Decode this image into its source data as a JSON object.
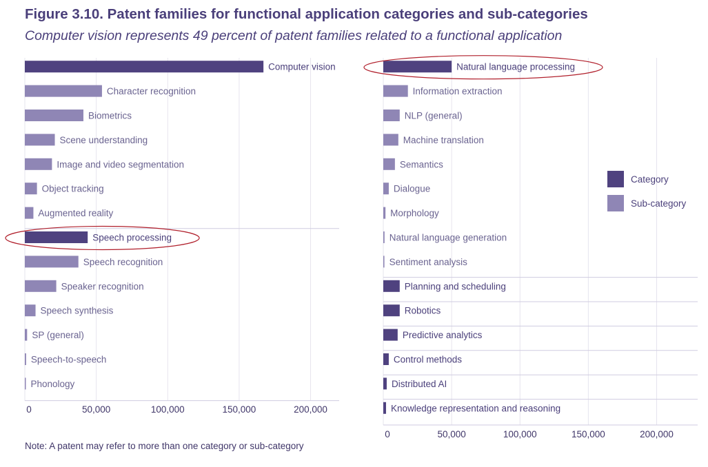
{
  "title": "Figure 3.10. Patent families for functional application categories and sub-categories",
  "subtitle": "Computer vision represents 49 percent of patent families related to a functional application",
  "note": "Note: A patent may refer to more than one category or sub-category",
  "colors": {
    "category": "#4f427f",
    "subcategory": "#8f86b5",
    "grid": "#e6e4ee",
    "axis": "#cfcbe0",
    "highlight": "#b01e2a"
  },
  "legend": [
    {
      "label": "Category",
      "kind": "category"
    },
    {
      "label": "Sub-category",
      "kind": "subcategory"
    }
  ],
  "chart_data": [
    {
      "type": "bar",
      "orientation": "horizontal",
      "xlim": [
        0,
        220000
      ],
      "xticks": [
        0,
        50000,
        100000,
        150000,
        200000
      ],
      "xtick_labels": [
        "0",
        "50,000",
        "100,000",
        "150,000",
        "200,000"
      ],
      "highlighted": [
        "Speech processing"
      ],
      "bars": [
        {
          "label": "Computer vision",
          "value": 167000,
          "kind": "category"
        },
        {
          "label": "Character recognition",
          "value": 54000,
          "kind": "subcategory"
        },
        {
          "label": "Biometrics",
          "value": 41000,
          "kind": "subcategory"
        },
        {
          "label": "Scene understanding",
          "value": 21000,
          "kind": "subcategory"
        },
        {
          "label": "Image and video segmentation",
          "value": 19000,
          "kind": "subcategory"
        },
        {
          "label": "Object tracking",
          "value": 8500,
          "kind": "subcategory"
        },
        {
          "label": "Augmented reality",
          "value": 6000,
          "kind": "subcategory"
        },
        {
          "label": "Speech processing",
          "value": 44000,
          "kind": "category"
        },
        {
          "label": "Speech recognition",
          "value": 37500,
          "kind": "subcategory"
        },
        {
          "label": "Speaker recognition",
          "value": 22000,
          "kind": "subcategory"
        },
        {
          "label": "Speech synthesis",
          "value": 7500,
          "kind": "subcategory"
        },
        {
          "label": "SP (general)",
          "value": 1600,
          "kind": "subcategory"
        },
        {
          "label": "Speech-to-speech",
          "value": 900,
          "kind": "subcategory"
        },
        {
          "label": "Phonology",
          "value": 700,
          "kind": "subcategory"
        }
      ]
    },
    {
      "type": "bar",
      "orientation": "horizontal",
      "xlim": [
        0,
        230000
      ],
      "xticks": [
        0,
        50000,
        100000,
        150000,
        200000
      ],
      "xtick_labels": [
        "0",
        "50,000",
        "100,000",
        "150,000",
        "200,000"
      ],
      "highlighted": [
        "Natural language processing"
      ],
      "bars": [
        {
          "label": "Natural language processing",
          "value": 50000,
          "kind": "category"
        },
        {
          "label": "Information extraction",
          "value": 18000,
          "kind": "subcategory"
        },
        {
          "label": "NLP (general)",
          "value": 12000,
          "kind": "subcategory"
        },
        {
          "label": "Machine translation",
          "value": 11000,
          "kind": "subcategory"
        },
        {
          "label": "Semantics",
          "value": 8500,
          "kind": "subcategory"
        },
        {
          "label": "Dialogue",
          "value": 4000,
          "kind": "subcategory"
        },
        {
          "label": "Morphology",
          "value": 1600,
          "kind": "subcategory"
        },
        {
          "label": "Natural language generation",
          "value": 900,
          "kind": "subcategory"
        },
        {
          "label": "Sentiment analysis",
          "value": 800,
          "kind": "subcategory"
        },
        {
          "label": "Planning and scheduling",
          "value": 12000,
          "kind": "category"
        },
        {
          "label": "Robotics",
          "value": 12000,
          "kind": "category"
        },
        {
          "label": "Predictive analytics",
          "value": 10500,
          "kind": "category"
        },
        {
          "label": "Control methods",
          "value": 4000,
          "kind": "category"
        },
        {
          "label": "Distributed AI",
          "value": 2500,
          "kind": "category"
        },
        {
          "label": "Knowledge representation and reasoning",
          "value": 2000,
          "kind": "category"
        }
      ]
    }
  ]
}
